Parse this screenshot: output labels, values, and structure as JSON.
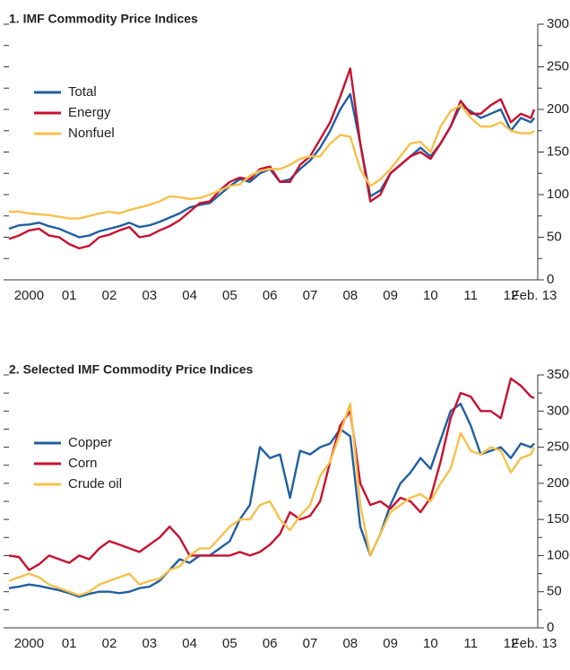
{
  "chart_data": [
    {
      "type": "line",
      "title": "1. IMF Commodity Price Indices",
      "legend": "upper left",
      "x": [
        2000,
        2000.25,
        2000.5,
        2000.75,
        2001,
        2001.25,
        2001.5,
        2001.75,
        2002,
        2002.25,
        2002.5,
        2002.75,
        2003,
        2003.25,
        2003.5,
        2003.75,
        2004,
        2004.25,
        2004.5,
        2004.75,
        2005,
        2005.25,
        2005.5,
        2005.75,
        2006,
        2006.25,
        2006.5,
        2006.75,
        2007,
        2007.25,
        2007.5,
        2007.75,
        2008,
        2008.25,
        2008.5,
        2008.75,
        2009,
        2009.25,
        2009.5,
        2009.75,
        2010,
        2010.25,
        2010.5,
        2010.75,
        2011,
        2011.25,
        2011.5,
        2011.75,
        2012,
        2012.25,
        2012.5,
        2012.75,
        2013,
        2013.08
      ],
      "xlim": [
        2000,
        2013.17
      ],
      "xticks": [
        {
          "value": 2000.5,
          "label": "2000"
        },
        {
          "value": 2001.5,
          "label": "01"
        },
        {
          "value": 2002.5,
          "label": "02"
        },
        {
          "value": 2003.5,
          "label": "03"
        },
        {
          "value": 2004.5,
          "label": "04"
        },
        {
          "value": 2005.5,
          "label": "05"
        },
        {
          "value": 2006.5,
          "label": "06"
        },
        {
          "value": 2007.5,
          "label": "07"
        },
        {
          "value": 2008.5,
          "label": "08"
        },
        {
          "value": 2009.5,
          "label": "09"
        },
        {
          "value": 2010.5,
          "label": "10"
        },
        {
          "value": 2011.5,
          "label": "11"
        },
        {
          "value": 2012.5,
          "label": "12"
        },
        {
          "value": 2013.08,
          "label": "Feb. 13"
        }
      ],
      "ylim": [
        0,
        300
      ],
      "yticks": [
        0,
        50,
        100,
        150,
        200,
        250,
        300
      ],
      "minor_yticks": [
        25,
        75,
        125,
        175,
        225,
        275
      ],
      "series": [
        {
          "name": "Total",
          "color": "#1f5fa0",
          "values": [
            60,
            64,
            65,
            67,
            63,
            60,
            55,
            50,
            52,
            57,
            60,
            63,
            67,
            62,
            64,
            68,
            73,
            78,
            85,
            88,
            90,
            100,
            110,
            118,
            115,
            125,
            130,
            115,
            118,
            130,
            140,
            155,
            175,
            200,
            218,
            160,
            98,
            105,
            125,
            135,
            145,
            155,
            145,
            160,
            180,
            205,
            198,
            190,
            195,
            200,
            175,
            190,
            185,
            190
          ]
        },
        {
          "name": "Energy",
          "color": "#c8102e",
          "values": [
            48,
            52,
            58,
            60,
            52,
            50,
            42,
            37,
            40,
            50,
            53,
            58,
            62,
            50,
            52,
            58,
            63,
            70,
            80,
            90,
            92,
            105,
            115,
            120,
            118,
            130,
            133,
            115,
            115,
            135,
            145,
            165,
            185,
            215,
            248,
            160,
            92,
            100,
            125,
            135,
            145,
            150,
            142,
            160,
            180,
            210,
            195,
            195,
            205,
            212,
            185,
            195,
            190,
            200
          ]
        },
        {
          "name": "Nonfuel",
          "color": "#f7c04a",
          "values": [
            80,
            80,
            78,
            77,
            76,
            74,
            72,
            72,
            75,
            78,
            80,
            78,
            82,
            85,
            88,
            92,
            98,
            97,
            95,
            96,
            100,
            105,
            110,
            112,
            122,
            128,
            130,
            130,
            135,
            142,
            145,
            145,
            160,
            170,
            168,
            130,
            110,
            118,
            130,
            145,
            160,
            162,
            150,
            180,
            198,
            205,
            190,
            180,
            180,
            185,
            175,
            172,
            172,
            175
          ]
        }
      ]
    },
    {
      "type": "line",
      "title": "2. Selected IMF Commodity Price Indices",
      "legend": "upper left",
      "x": [
        2000,
        2000.25,
        2000.5,
        2000.75,
        2001,
        2001.25,
        2001.5,
        2001.75,
        2002,
        2002.25,
        2002.5,
        2002.75,
        2003,
        2003.25,
        2003.5,
        2003.75,
        2004,
        2004.25,
        2004.5,
        2004.75,
        2005,
        2005.25,
        2005.5,
        2005.75,
        2006,
        2006.25,
        2006.5,
        2006.75,
        2007,
        2007.25,
        2007.5,
        2007.75,
        2008,
        2008.25,
        2008.5,
        2008.75,
        2009,
        2009.25,
        2009.5,
        2009.75,
        2010,
        2010.25,
        2010.5,
        2010.75,
        2011,
        2011.25,
        2011.5,
        2011.75,
        2012,
        2012.25,
        2012.5,
        2012.75,
        2013,
        2013.08
      ],
      "xlim": [
        2000,
        2013.17
      ],
      "xticks": [
        {
          "value": 2000.5,
          "label": "2000"
        },
        {
          "value": 2001.5,
          "label": "01"
        },
        {
          "value": 2002.5,
          "label": "02"
        },
        {
          "value": 2003.5,
          "label": "03"
        },
        {
          "value": 2004.5,
          "label": "04"
        },
        {
          "value": 2005.5,
          "label": "05"
        },
        {
          "value": 2006.5,
          "label": "06"
        },
        {
          "value": 2007.5,
          "label": "07"
        },
        {
          "value": 2008.5,
          "label": "08"
        },
        {
          "value": 2009.5,
          "label": "09"
        },
        {
          "value": 2010.5,
          "label": "10"
        },
        {
          "value": 2011.5,
          "label": "11"
        },
        {
          "value": 2012.5,
          "label": "12"
        },
        {
          "value": 2013.08,
          "label": "Feb. 13"
        }
      ],
      "ylim": [
        0,
        350
      ],
      "yticks": [
        0,
        50,
        100,
        150,
        200,
        250,
        300,
        350
      ],
      "minor_yticks": [
        25,
        75,
        125,
        175,
        225,
        275,
        325
      ],
      "series": [
        {
          "name": "Copper",
          "color": "#1f5fa0",
          "values": [
            55,
            57,
            60,
            58,
            55,
            52,
            48,
            43,
            47,
            50,
            50,
            48,
            50,
            55,
            57,
            65,
            80,
            95,
            90,
            100,
            100,
            110,
            120,
            150,
            170,
            250,
            235,
            240,
            180,
            245,
            240,
            250,
            255,
            275,
            265,
            140,
            100,
            130,
            170,
            200,
            215,
            235,
            220,
            260,
            300,
            310,
            280,
            240,
            245,
            250,
            235,
            255,
            250,
            255
          ]
        },
        {
          "name": "Corn",
          "color": "#c8102e",
          "values": [
            100,
            98,
            80,
            88,
            100,
            95,
            90,
            100,
            95,
            110,
            120,
            115,
            110,
            105,
            115,
            125,
            140,
            125,
            100,
            100,
            100,
            100,
            100,
            105,
            100,
            105,
            115,
            130,
            160,
            150,
            155,
            175,
            230,
            280,
            300,
            200,
            170,
            175,
            165,
            180,
            175,
            160,
            180,
            230,
            290,
            325,
            320,
            300,
            300,
            290,
            345,
            335,
            320,
            318
          ]
        },
        {
          "name": "Crude oil",
          "color": "#f7c04a",
          "values": [
            65,
            70,
            75,
            70,
            60,
            55,
            50,
            45,
            50,
            60,
            65,
            70,
            75,
            60,
            65,
            68,
            80,
            85,
            100,
            110,
            110,
            125,
            140,
            150,
            150,
            170,
            175,
            150,
            135,
            155,
            170,
            210,
            230,
            270,
            310,
            170,
            100,
            130,
            160,
            170,
            180,
            185,
            175,
            200,
            220,
            270,
            245,
            240,
            250,
            245,
            215,
            235,
            240,
            250
          ]
        }
      ]
    }
  ]
}
